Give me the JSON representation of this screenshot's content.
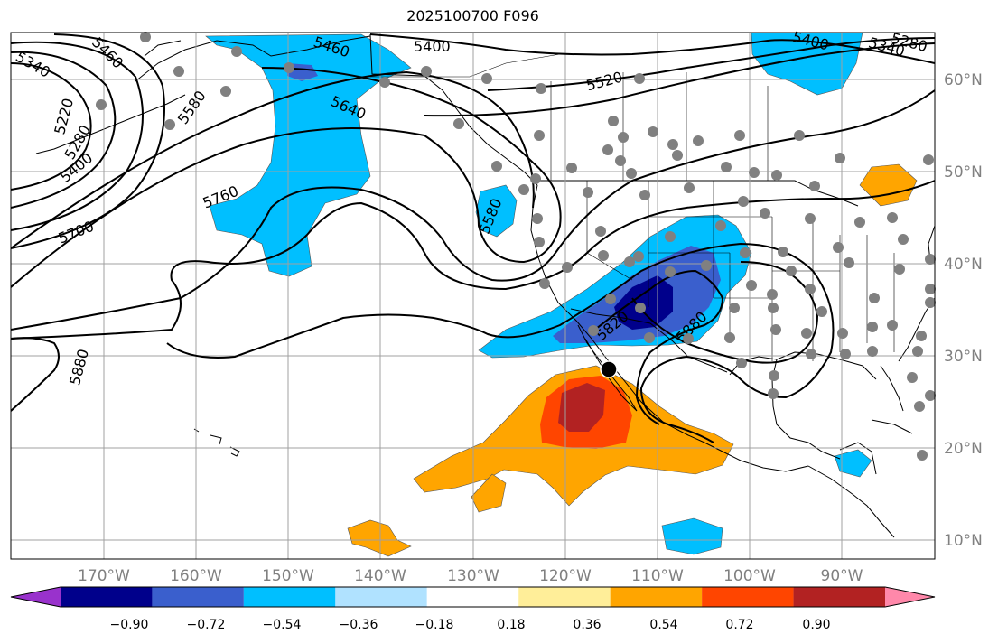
{
  "title": "2025100700 F096",
  "map": {
    "projection": "PlateCarree",
    "lon_range": [
      -180,
      -79
    ],
    "lat_range": [
      7,
      64
    ],
    "lat_ticks": [
      "60°N",
      "50°N",
      "40°N",
      "30°N",
      "20°N",
      "10°N"
    ],
    "lon_ticks": [
      "170°W",
      "160°W",
      "150°W",
      "140°W",
      "130°W",
      "120°W",
      "110°W",
      "100°W",
      "90°W"
    ],
    "contour_labels": [
      "5460",
      "5400",
      "5460",
      "5520",
      "5400",
      "5340",
      "5280",
      "5340",
      "5580",
      "5640",
      "5220",
      "5280",
      "5400",
      "5760",
      "5700",
      "5580",
      "5820",
      "5880",
      "5880"
    ],
    "gridline_color": "#a0a0a0",
    "tick_label_color": "#808080"
  },
  "colorbar": {
    "colors": [
      "#9932cc",
      "#00008b",
      "#3a5fcd",
      "#00bfff",
      "#b0e2ff",
      "#ffffff",
      "#ffee99",
      "#ffa500",
      "#ff4500",
      "#b22222",
      "#ff88aa"
    ],
    "tick_labels": [
      "−0.90",
      "−0.72",
      "−0.54",
      "−0.36",
      "−0.18",
      "0.18",
      "0.36",
      "0.54",
      "0.72",
      "0.90"
    ]
  }
}
